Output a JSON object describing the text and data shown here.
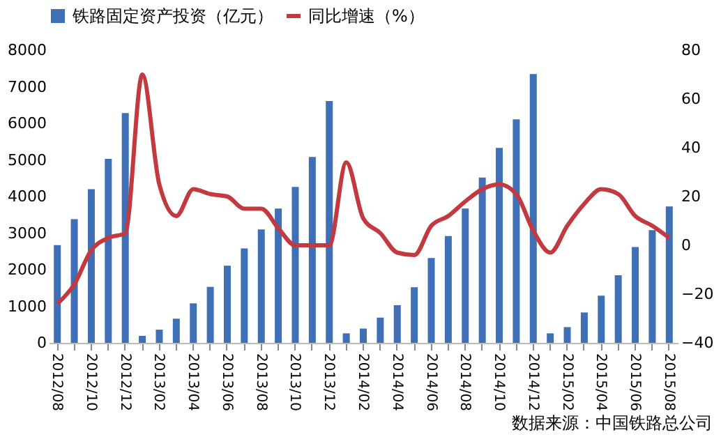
{
  "chart_data": {
    "type": "bar",
    "categories": [
      "2012/08",
      null,
      "2012/10",
      null,
      "2012/12",
      null,
      "2013/02",
      null,
      "2013/04",
      null,
      "2013/06",
      null,
      "2013/08",
      null,
      "2013/10",
      null,
      "2013/12",
      null,
      "2014/02",
      null,
      "2014/04",
      null,
      "2014/06",
      null,
      "2014/08",
      null,
      "2014/10",
      null,
      "2014/12",
      null,
      "2015/02",
      null,
      "2015/04",
      null,
      "2015/06",
      null,
      "2015/08"
    ],
    "series": [
      {
        "name": "铁路固定资产投资（亿元）",
        "color": "#3f6fb5",
        "values": [
          2670,
          3380,
          4200,
          5030,
          6280,
          190,
          360,
          660,
          1080,
          1530,
          2110,
          2580,
          3100,
          3670,
          4260,
          5080,
          6610,
          260,
          390,
          690,
          1030,
          1520,
          2320,
          2920,
          3670,
          4520,
          5330,
          6110,
          7350,
          260,
          430,
          830,
          1290,
          1850,
          2620,
          3080,
          3730
        ]
      },
      {
        "name": "同比增速（%）",
        "type": "line",
        "axis": "y2",
        "color": "#c23a3f",
        "values": [
          -24,
          -16,
          -2,
          3,
          5,
          70,
          25,
          12,
          23,
          21,
          20,
          15,
          15,
          7,
          0,
          0,
          0,
          34,
          11,
          5,
          -3,
          -4,
          8,
          12,
          18,
          23,
          25,
          21,
          6,
          -3,
          8,
          17,
          23,
          21,
          12,
          8,
          3
        ]
      }
    ],
    "ylim": [
      0,
      8000
    ],
    "yticks": [
      0,
      1000,
      2000,
      3000,
      4000,
      5000,
      6000,
      7000,
      8000
    ],
    "y2lim": [
      -40,
      80
    ],
    "y2ticks": [
      -40,
      -20,
      0,
      20,
      40,
      60,
      80
    ],
    "legend": "top",
    "grid": false,
    "annotations": [
      "数据来源：中国铁路总公司"
    ]
  }
}
